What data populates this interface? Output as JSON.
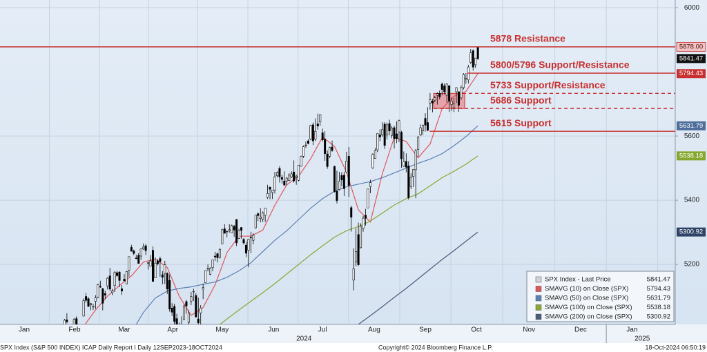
{
  "chart_data": {
    "type": "candlestick",
    "ylim": [
      5013,
      6024
    ],
    "yticks": [
      5200,
      5400,
      5600,
      6000
    ],
    "xlim": [
      0,
      282.6
    ],
    "xticks": [
      {
        "value": 10.1,
        "label": "Jan"
      },
      {
        "value": 31.2,
        "label": "Feb"
      },
      {
        "value": 52,
        "label": "Mar"
      },
      {
        "value": 72.3,
        "label": "Apr"
      },
      {
        "value": 93,
        "label": "May"
      },
      {
        "value": 114.5,
        "label": "Jun"
      },
      {
        "value": 135,
        "label": "Jul"
      },
      {
        "value": 156.6,
        "label": "Aug"
      },
      {
        "value": 178,
        "label": "Sep"
      },
      {
        "value": 199.4,
        "label": "Oct"
      },
      {
        "value": 221.4,
        "label": "Nov"
      },
      {
        "value": 243,
        "label": "Dec"
      },
      {
        "value": 264.5,
        "label": "Jan"
      }
    ],
    "x_groups": [
      {
        "label": "2024",
        "x": 127.2
      },
      {
        "label": "2025",
        "x": 268.8
      }
    ],
    "grid": true,
    "candles": {
      "name": "SPX Index - Last Price",
      "color": "#000000",
      "x": [
        27,
        28,
        29,
        30,
        31,
        32,
        33,
        34,
        35,
        36,
        37,
        38,
        39,
        40,
        41,
        42,
        43,
        44,
        45,
        46,
        47,
        48,
        49,
        50,
        51,
        52,
        53,
        54,
        55,
        56,
        57,
        58,
        59,
        60,
        61,
        62,
        63,
        64,
        65,
        66,
        67,
        68,
        69,
        70,
        71,
        72,
        73,
        74,
        75,
        76,
        77,
        78,
        79,
        80,
        81,
        82,
        83,
        84,
        85,
        86,
        87,
        88,
        89,
        90,
        91,
        92,
        93,
        94,
        95,
        96,
        97,
        98,
        99,
        100,
        101,
        102,
        103,
        104,
        105,
        106,
        107,
        108,
        109,
        110,
        111,
        112,
        113,
        114,
        115,
        116,
        117,
        118,
        119,
        120,
        121,
        122,
        123,
        124,
        125,
        126,
        127,
        128,
        129,
        130,
        131,
        132,
        133,
        134,
        135,
        136,
        137,
        138,
        139,
        140,
        141,
        142,
        143,
        144,
        145,
        146,
        147,
        148,
        149,
        150,
        151,
        152,
        153,
        154,
        155,
        156,
        157,
        158,
        159,
        160,
        161,
        162,
        163,
        164,
        165,
        166,
        167,
        168,
        169,
        170,
        171,
        172,
        173,
        174,
        175,
        176,
        177,
        178,
        179,
        180,
        181,
        182,
        183,
        184,
        185,
        186,
        187,
        188,
        189,
        190,
        191,
        192,
        193,
        194,
        195,
        196,
        197,
        198,
        199,
        200
      ],
      "open": [
        4995,
        5027,
        4967,
        4970,
        5004,
        5031,
        4989,
        4963,
        5039,
        5100,
        5093,
        5074,
        5067,
        5085,
        5098,
        5131,
        5124,
        5109,
        5133,
        5164,
        5112,
        5134,
        5174,
        5176,
        5124,
        5154,
        5139,
        5182,
        5253,
        5242,
        5220,
        5228,
        5226,
        5248,
        5258,
        5204,
        5194,
        5244,
        5158,
        5211,
        5218,
        5168,
        5172,
        5172,
        5150,
        5064,
        5069,
        5031,
        5006,
        4988,
        5028,
        5084,
        5019,
        5085,
        5114,
        5103,
        5030,
        5049,
        5123,
        5143,
        5187,
        5169,
        5190,
        5226,
        5233,
        5222,
        5264,
        5311,
        5303,
        5305,
        5298,
        5319,
        5340,
        5281,
        5315,
        5278,
        5260,
        5244,
        5284,
        5275,
        5314,
        5358,
        5343,
        5341,
        5353,
        5409,
        5441,
        5424,
        5432,
        5476,
        5499,
        5471,
        5460,
        5460,
        5461,
        5473,
        5488,
        5471,
        5462,
        5506,
        5537,
        5572,
        5585,
        5591,
        5635,
        5590,
        5638,
        5644,
        5610,
        5590,
        5544,
        5537,
        5566,
        5505,
        5428,
        5433,
        5477,
        5478,
        5488,
        5537,
        5377,
        5151,
        5207,
        5293,
        5252,
        5312,
        5353,
        5376,
        5443,
        5501,
        5530,
        5557,
        5604,
        5603,
        5637,
        5603,
        5639,
        5602,
        5626,
        5607,
        5613,
        5612,
        5507,
        5521,
        5507,
        5443,
        5474,
        5495,
        5558,
        5603,
        5616,
        5655,
        5642,
        5703,
        5709,
        5712,
        5727,
        5733,
        5762,
        5756,
        5727,
        5757,
        5698,
        5688,
        5738,
        5738,
        5719,
        5751,
        5778,
        5775,
        5830,
        5866,
        5822,
        5876
      ],
      "high": [
        5030,
        5048,
        4971,
        5003,
        5033,
        5038,
        4993,
        4983,
        5094,
        5111,
        5098,
        5080,
        5077,
        5104,
        5140,
        5149,
        5127,
        5118,
        5160,
        5189,
        5124,
        5179,
        5180,
        5179,
        5136,
        5170,
        5180,
        5225,
        5261,
        5246,
        5230,
        5235,
        5249,
        5265,
        5263,
        5208,
        5229,
        5256,
        5222,
        5216,
        5224,
        5179,
        5211,
        5175,
        5169,
        5079,
        5077,
        5046,
        5019,
        5038,
        5076,
        5089,
        5057,
        5114,
        5124,
        5110,
        5096,
        5073,
        5140,
        5181,
        5200,
        5191,
        5214,
        5239,
        5237,
        5250,
        5311,
        5325,
        5306,
        5325,
        5324,
        5323,
        5341,
        5311,
        5316,
        5282,
        5270,
        5280,
        5302,
        5297,
        5354,
        5362,
        5375,
        5365,
        5376,
        5448,
        5442,
        5432,
        5488,
        5490,
        5506,
        5479,
        5490,
        5472,
        5484,
        5490,
        5524,
        5480,
        5510,
        5539,
        5571,
        5583,
        5590,
        5635,
        5642,
        5655,
        5670,
        5667,
        5623,
        5615,
        5555,
        5567,
        5586,
        5508,
        5492,
        5488,
        5487,
        5489,
        5551,
        5566,
        5383,
        5250,
        5312,
        5330,
        5328,
        5351,
        5373,
        5436,
        5464,
        5546,
        5563,
        5608,
        5621,
        5643,
        5643,
        5642,
        5651,
        5631,
        5632,
        5646,
        5651,
        5616,
        5552,
        5546,
        5522,
        5484,
        5497,
        5560,
        5600,
        5636,
        5636,
        5671,
        5690,
        5734,
        5716,
        5725,
        5736,
        5742,
        5767,
        5764,
        5765,
        5758,
        5720,
        5719,
        5752,
        5739,
        5758,
        5796,
        5796,
        5822,
        5871,
        5870,
        5843,
        5878
      ],
      "low": [
        4988,
        5016,
        4920,
        4957,
        5000,
        4999,
        4956,
        4946,
        5038,
        5081,
        5068,
        5057,
        5058,
        5061,
        5094,
        5127,
        5057,
        5092,
        5122,
        5117,
        5104,
        5114,
        5161,
        5129,
        5105,
        5146,
        5138,
        5161,
        5240,
        5229,
        5216,
        5203,
        5214,
        5245,
        5229,
        5184,
        5194,
        5146,
        5157,
        5197,
        5161,
        5138,
        5139,
        5108,
        5053,
        5039,
        5008,
        4999,
        4953,
        4969,
        5027,
        5047,
        4990,
        5073,
        5086,
        5035,
        5013,
        5012,
        5092,
        5143,
        5178,
        5166,
        5179,
        5211,
        5206,
        5218,
        5263,
        5296,
        5284,
        5299,
        5297,
        5286,
        5257,
        5279,
        5280,
        5262,
        5223,
        5191,
        5235,
        5263,
        5312,
        5335,
        5331,
        5332,
        5332,
        5404,
        5403,
        5404,
        5421,
        5471,
        5455,
        5452,
        5446,
        5446,
        5460,
        5469,
        5455,
        5448,
        5459,
        5505,
        5532,
        5563,
        5574,
        5587,
        5572,
        5584,
        5620,
        5632,
        5583,
        5523,
        5498,
        5531,
        5551,
        5424,
        5390,
        5430,
        5444,
        5413,
        5486,
        5410,
        5302,
        5119,
        5194,
        5195,
        5250,
        5302,
        5321,
        5376,
        5422,
        5498,
        5530,
        5550,
        5584,
        5598,
        5560,
        5590,
        5603,
        5593,
        5561,
        5578,
        5581,
        5501,
        5504,
        5487,
        5402,
        5435,
        5441,
        5406,
        5535,
        5600,
        5603,
        5614,
        5615,
        5682,
        5674,
        5706,
        5698,
        5714,
        5727,
        5729,
        5704,
        5675,
        5678,
        5675,
        5703,
        5675,
        5713,
        5745,
        5763,
        5764,
        5825,
        5804,
        5813,
        5837
      ],
      "close": [
        5026,
        5021,
        4953,
        5000,
        5029,
        5005,
        4975,
        4981,
        5087,
        5088,
        5069,
        5078,
        5069,
        5096,
        5137,
        5130,
        5079,
        5104,
        5157,
        5123,
        5117,
        5175,
        5165,
        5150,
        5117,
        5149,
        5178,
        5224,
        5241,
        5234,
        5218,
        5203,
        5248,
        5254,
        5243,
        5205,
        5211,
        5147,
        5204,
        5202,
        5209,
        5160,
        5199,
        5123,
        5061,
        5051,
        5022,
        5011,
        4967,
        5010,
        5070,
        5071,
        5048,
        5100,
        5116,
        5036,
        5018,
        5064,
        5128,
        5181,
        5187,
        5188,
        5214,
        5223,
        5221,
        5247,
        5308,
        5297,
        5303,
        5308,
        5321,
        5307,
        5267,
        5305,
        5306,
        5267,
        5235,
        5278,
        5283,
        5291,
        5354,
        5352,
        5347,
        5360,
        5375,
        5421,
        5434,
        5431,
        5473,
        5487,
        5473,
        5465,
        5447,
        5469,
        5478,
        5482,
        5460,
        5475,
        5509,
        5537,
        5567,
        5572,
        5577,
        5633,
        5585,
        5615,
        5631,
        5667,
        5588,
        5545,
        5505,
        5564,
        5555,
        5427,
        5399,
        5459,
        5463,
        5436,
        5522,
        5446,
        5347,
        5186,
        5240,
        5199,
        5319,
        5344,
        5344,
        5435,
        5455,
        5543,
        5554,
        5608,
        5597,
        5620,
        5571,
        5635,
        5616,
        5625,
        5592,
        5592,
        5648,
        5529,
        5520,
        5503,
        5408,
        5471,
        5496,
        5554,
        5596,
        5626,
        5634,
        5634,
        5618,
        5713,
        5703,
        5719,
        5732,
        5722,
        5745,
        5738,
        5762,
        5709,
        5709,
        5700,
        5751,
        5696,
        5751,
        5792,
        5780,
        5815,
        5859,
        5815,
        5843,
        5841.47
      ]
    },
    "series": [
      {
        "name": "SMAVG (10)  on Close (SPX)",
        "color": "#e0555a",
        "tag_color": "#c8302f",
        "x": [
          35,
          40,
          45,
          50,
          55,
          60,
          65,
          70,
          75,
          80,
          85,
          90,
          95,
          100,
          105,
          110,
          115,
          120,
          125,
          130,
          135,
          140,
          145,
          150,
          155,
          160,
          165,
          170,
          175,
          180,
          185,
          190,
          195,
          200
        ],
        "values": [
          5007,
          5058,
          5101,
          5134,
          5164,
          5207,
          5217,
          5190,
          5101,
          5041,
          5066,
          5136,
          5237,
          5288,
          5288,
          5307,
          5384,
          5448,
          5475,
          5529,
          5597,
          5568,
          5488,
          5370,
          5332,
          5482,
          5596,
          5583,
          5532,
          5575,
          5685,
          5724,
          5739,
          5794.43
        ]
      },
      {
        "name": "SMAVG (50)  on Close (SPX)",
        "color": "#5d80b4",
        "tag_color": "#4e6e9a",
        "x": [
          57,
          60,
          65,
          70,
          75,
          80,
          85,
          90,
          95,
          100,
          105,
          110,
          115,
          120,
          125,
          130,
          135,
          140,
          145,
          150,
          155,
          160,
          165,
          170,
          175,
          180,
          185,
          190,
          195,
          200
        ],
        "values": [
          5013,
          5050,
          5095,
          5117,
          5125,
          5130,
          5138,
          5145,
          5160,
          5180,
          5205,
          5240,
          5275,
          5305,
          5340,
          5375,
          5405,
          5428,
          5442,
          5450,
          5458,
          5470,
          5485,
          5500,
          5515,
          5528,
          5545,
          5570,
          5598,
          5631.79
        ]
      },
      {
        "name": "SMAVG (100)  on Close (SPX)",
        "color": "#8aa832",
        "tag_color": "#86a72e",
        "x": [
          92,
          95,
          100,
          105,
          110,
          115,
          120,
          125,
          130,
          135,
          140,
          145,
          150,
          155,
          160,
          165,
          170,
          175,
          180,
          185,
          190,
          195,
          200
        ],
        "values": [
          5013,
          5030,
          5058,
          5085,
          5112,
          5140,
          5170,
          5200,
          5230,
          5258,
          5285,
          5305,
          5318,
          5335,
          5360,
          5385,
          5405,
          5420,
          5445,
          5470,
          5490,
          5512,
          5538.18
        ]
      },
      {
        "name": "SMAVG (200)  on Close (SPX)",
        "color": "#4b5b7c",
        "tag_color": "#2f4366",
        "x": [
          150,
          155,
          160,
          165,
          170,
          175,
          180,
          185,
          190,
          195,
          200
        ],
        "values": [
          5013,
          5040,
          5068,
          5097,
          5125,
          5155,
          5185,
          5215,
          5243,
          5272,
          5300.92
        ]
      }
    ],
    "levels": [
      {
        "value": 5878,
        "value_label": "5878.00",
        "label": "5878 Resistance",
        "style": "solid",
        "x_start": 0
      },
      {
        "value": 5796,
        "label": "5800/5796 Support/Resistance",
        "style": "solid",
        "x_start": 195.7
      },
      {
        "value": 5733,
        "label": "5733 Support/Resistance",
        "style": "dashed",
        "x_start": 193.6
      },
      {
        "value": 5686,
        "label": "5686 Support",
        "style": "dashed",
        "x_start": 181.5
      },
      {
        "value": 5615,
        "label": "5615 Support",
        "style": "solid",
        "x_start": 179.8
      }
    ],
    "zone": {
      "x": [
        181.5,
        194.5
      ],
      "y": [
        5686,
        5733
      ],
      "color": "#e8737a"
    },
    "level_color": "#c8302f",
    "footer": {
      "left": "SPX Index (S&P 500 INDEX) ICAP Daily Report I  Daily 12SEP2023-18OCT2024",
      "center": "Copyright© 2024 Bloomberg Finance L.P.",
      "right": "18-Oct-2024 06:50:19"
    }
  }
}
